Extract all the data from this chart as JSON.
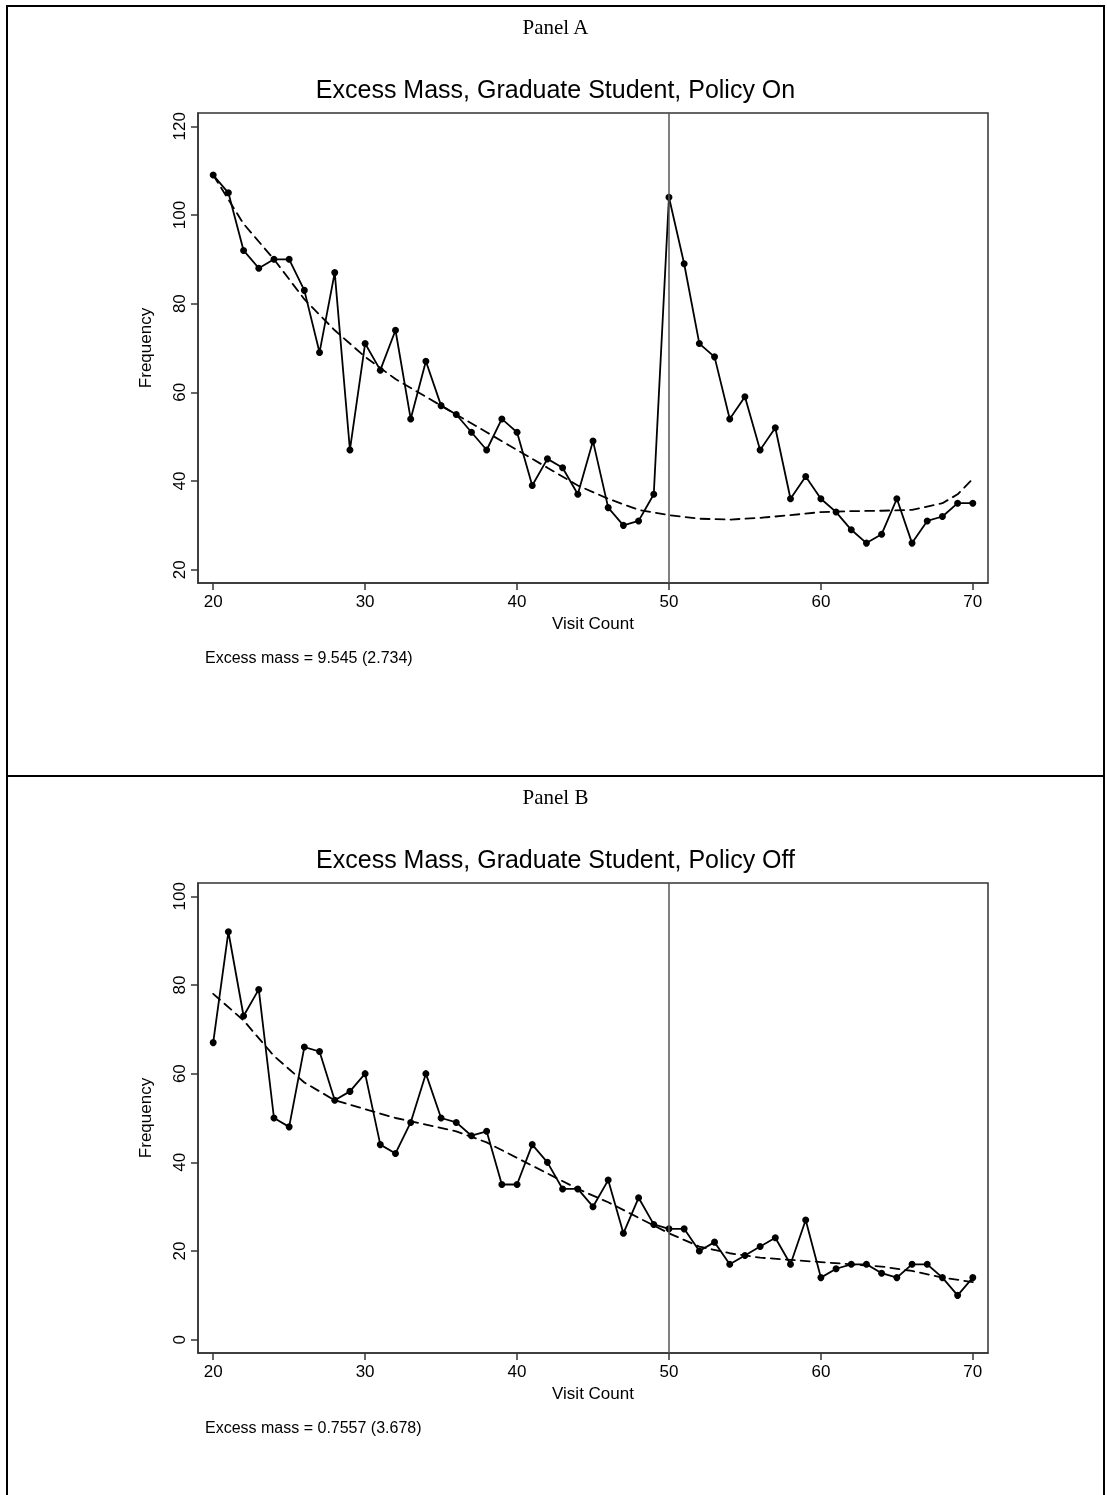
{
  "chart_data": [
    {
      "type": "line",
      "title": "Panel A",
      "subtitle": "Excess Mass, Graduate Student, Policy On",
      "xlabel": "Visit Count",
      "ylabel": "Frequency",
      "xlim": [
        19,
        71
      ],
      "xticks": [
        20,
        30,
        40,
        50,
        60,
        70
      ],
      "ylim": [
        17,
        123
      ],
      "yticks": [
        20,
        40,
        60,
        80,
        100,
        120
      ],
      "grid": false,
      "series": [
        {
          "color": "#000000",
          "marker": "circle",
          "line_style": "solid",
          "x": [
            20,
            21,
            22,
            23,
            24,
            25,
            26,
            27,
            28,
            29,
            30,
            31,
            32,
            33,
            34,
            35,
            36,
            37,
            38,
            39,
            40,
            41,
            42,
            43,
            44,
            45,
            46,
            47,
            48,
            49,
            50,
            51,
            52,
            53,
            54,
            55,
            56,
            57,
            58,
            59,
            60,
            61,
            62,
            63,
            64,
            65,
            66,
            67,
            68,
            69,
            70
          ],
          "values": [
            109,
            105,
            92,
            88,
            90,
            90,
            83,
            69,
            87,
            47,
            71,
            65,
            74,
            54,
            67,
            57,
            55,
            51,
            47,
            54,
            51,
            39,
            45,
            43,
            37,
            49,
            34,
            30,
            31,
            37,
            104,
            89,
            71,
            68,
            54,
            59,
            47,
            52,
            36,
            41,
            36,
            33,
            29,
            26,
            28,
            36,
            26,
            31,
            32,
            35,
            35
          ]
        },
        {
          "color": "#000000",
          "marker": "none",
          "line_style": "dashed",
          "x": [
            20,
            22,
            24,
            26,
            28,
            30,
            32,
            34,
            36,
            38,
            40,
            42,
            44,
            46,
            48,
            50,
            52,
            54,
            56,
            58,
            60,
            62,
            64,
            66,
            68,
            69,
            70
          ],
          "values": [
            109,
            98,
            90,
            81,
            74,
            68,
            63,
            59,
            55,
            51,
            47,
            43,
            39,
            36,
            33.5,
            32.3,
            31.5,
            31.3,
            31.7,
            32.3,
            33,
            33.2,
            33.3,
            33.5,
            35,
            37,
            40.5
          ]
        }
      ],
      "ref_lines": [
        {
          "axis": "x",
          "value": 50,
          "color": "#555555"
        }
      ],
      "annotations": [
        "Excess mass = 9.545 (2.734)"
      ]
    },
    {
      "type": "line",
      "title": "Panel B",
      "subtitle": "Excess Mass, Graduate Student, Policy Off",
      "xlabel": "Visit Count",
      "ylabel": "Frequency",
      "xlim": [
        19,
        71
      ],
      "xticks": [
        20,
        30,
        40,
        50,
        60,
        70
      ],
      "ylim": [
        -3,
        103
      ],
      "yticks": [
        0,
        20,
        40,
        60,
        80,
        100
      ],
      "grid": false,
      "series": [
        {
          "color": "#000000",
          "marker": "circle",
          "line_style": "solid",
          "x": [
            20,
            21,
            22,
            23,
            24,
            25,
            26,
            27,
            28,
            29,
            30,
            31,
            32,
            33,
            34,
            35,
            36,
            37,
            38,
            39,
            40,
            41,
            42,
            43,
            44,
            45,
            46,
            47,
            48,
            49,
            50,
            51,
            52,
            53,
            54,
            55,
            56,
            57,
            58,
            59,
            60,
            61,
            62,
            63,
            64,
            65,
            66,
            67,
            68,
            69,
            70
          ],
          "values": [
            67,
            92,
            73,
            79,
            50,
            48,
            66,
            65,
            54,
            56,
            60,
            44,
            42,
            49,
            60,
            50,
            49,
            46,
            47,
            35,
            35,
            44,
            40,
            34,
            34,
            30,
            36,
            24,
            32,
            26,
            25,
            25,
            20,
            22,
            17,
            19,
            21,
            23,
            17,
            27,
            14,
            16,
            17,
            17,
            15,
            14,
            17,
            17,
            14,
            10,
            14
          ]
        },
        {
          "color": "#000000",
          "marker": "none",
          "line_style": "dashed",
          "x": [
            20,
            22,
            24,
            26,
            28,
            30,
            32,
            34,
            36,
            38,
            40,
            42,
            44,
            46,
            48,
            50,
            52,
            54,
            56,
            58,
            60,
            62,
            64,
            66,
            68,
            70
          ],
          "values": [
            78,
            72,
            64,
            58,
            54,
            52,
            50,
            48.5,
            47,
            44.5,
            41,
            37.5,
            34,
            31,
            27.5,
            24,
            21,
            19.5,
            18.5,
            18,
            17.5,
            17,
            16.5,
            15.5,
            14,
            13
          ]
        }
      ],
      "ref_lines": [
        {
          "axis": "x",
          "value": 50,
          "color": "#555555"
        }
      ],
      "annotations": [
        "Excess mass = 0.7557 (3.678)"
      ]
    }
  ]
}
